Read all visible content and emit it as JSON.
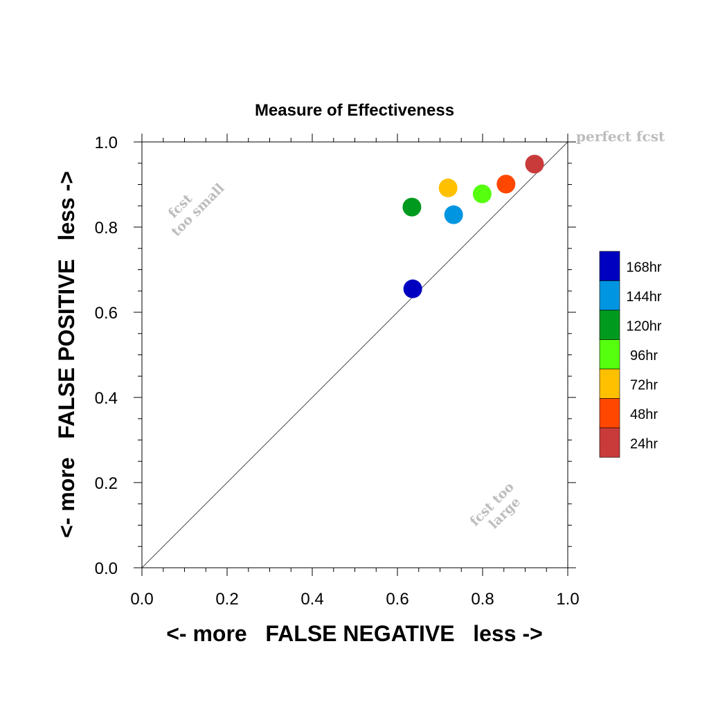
{
  "chart_data": {
    "type": "scatter",
    "title": "Measure of Effectiveness",
    "xlabel": "<- more   FALSE NEGATIVE   less ->",
    "ylabel": "<- more   FALSE POSITIVE   less ->",
    "xlim": [
      0.0,
      1.0
    ],
    "ylim": [
      0.0,
      1.0
    ],
    "x_ticks": [
      "0.0",
      "0.2",
      "0.4",
      "0.6",
      "0.8",
      "1.0"
    ],
    "y_ticks": [
      "0.0",
      "0.2",
      "0.4",
      "0.6",
      "0.8",
      "1.0"
    ],
    "grid": false,
    "diagonal_line": true,
    "annotations": {
      "perfect": "perfect fcst",
      "too_small_line1": "fcst",
      "too_small_line2": "too small",
      "too_large_line1": "fcst too",
      "too_large_line2": "large"
    },
    "legend_position": "right",
    "series": [
      {
        "name": "168hr",
        "color": "#0000c0",
        "x": 0.636,
        "y": 0.655
      },
      {
        "name": "144hr",
        "color": "#0095e0",
        "x": 0.732,
        "y": 0.829
      },
      {
        "name": "120hr",
        "color": "#009a1e",
        "x": 0.634,
        "y": 0.847
      },
      {
        "name": "96hr",
        "color": "#55ff0e",
        "x": 0.799,
        "y": 0.878
      },
      {
        "name": "72hr",
        "color": "#ffc000",
        "x": 0.719,
        "y": 0.892
      },
      {
        "name": "48hr",
        "color": "#ff4700",
        "x": 0.855,
        "y": 0.901
      },
      {
        "name": "24hr",
        "color": "#c93b3b",
        "x": 0.922,
        "y": 0.948
      }
    ]
  }
}
